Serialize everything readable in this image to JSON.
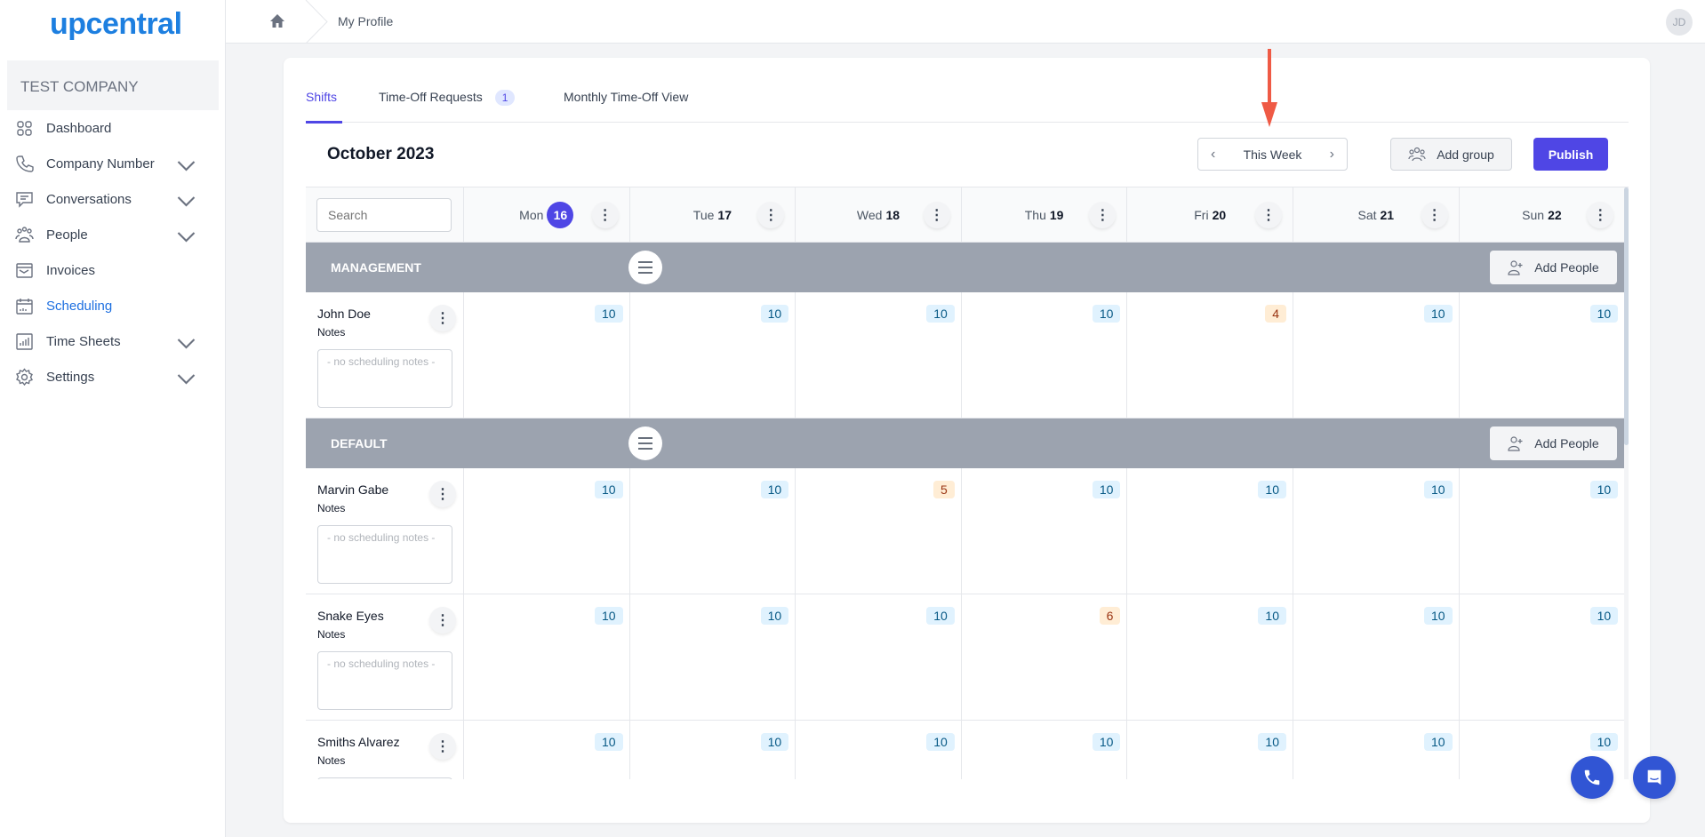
{
  "brand": "upcentral",
  "company": "TEST COMPANY",
  "sidebar": {
    "items": [
      {
        "label": "Dashboard",
        "icon": "grid-icon",
        "chevron": false
      },
      {
        "label": "Company Number",
        "icon": "phone-icon",
        "chevron": true
      },
      {
        "label": "Conversations",
        "icon": "chat-icon",
        "chevron": true
      },
      {
        "label": "People",
        "icon": "people-icon",
        "chevron": true
      },
      {
        "label": "Invoices",
        "icon": "invoice-icon",
        "chevron": false
      },
      {
        "label": "Scheduling",
        "icon": "calendar-icon",
        "chevron": false,
        "active": true
      },
      {
        "label": "Time Sheets",
        "icon": "chart-icon",
        "chevron": true
      },
      {
        "label": "Settings",
        "icon": "gear-icon",
        "chevron": true
      }
    ]
  },
  "topbar": {
    "breadcrumb": "My Profile",
    "avatar": "JD"
  },
  "tabs": [
    {
      "label": "Shifts"
    },
    {
      "label": "Time-Off Requests",
      "badge": "1"
    },
    {
      "label": "Monthly Time-Off View"
    }
  ],
  "toolbar": {
    "month": "October 2023",
    "week": "This Week",
    "add_group": "Add group",
    "publish": "Publish"
  },
  "search": {
    "placeholder": "Search"
  },
  "days": [
    {
      "name": "Mon",
      "num": "16",
      "today": true
    },
    {
      "name": "Tue",
      "num": "17"
    },
    {
      "name": "Wed",
      "num": "18"
    },
    {
      "name": "Thu",
      "num": "19"
    },
    {
      "name": "Fri",
      "num": "20"
    },
    {
      "name": "Sat",
      "num": "21"
    },
    {
      "name": "Sun",
      "num": "22"
    }
  ],
  "labels": {
    "add_people": "Add People",
    "notes": "Notes",
    "notes_placeholder": "- no scheduling notes -"
  },
  "groups": [
    {
      "name": "MANAGEMENT",
      "people": [
        {
          "name": "John Doe",
          "hours": [
            10,
            10,
            10,
            10,
            4,
            10,
            10
          ]
        }
      ]
    },
    {
      "name": "DEFAULT",
      "people": [
        {
          "name": "Marvin Gabe",
          "hours": [
            10,
            10,
            5,
            10,
            10,
            10,
            10
          ]
        },
        {
          "name": "Snake Eyes",
          "hours": [
            10,
            10,
            10,
            6,
            10,
            10,
            10
          ]
        },
        {
          "name": "Smiths Alvarez",
          "hours": [
            10,
            10,
            10,
            10,
            10,
            10,
            10
          ]
        }
      ]
    }
  ],
  "colors": {
    "accent": "#4f46e5",
    "full_bg": "#e0f2fe",
    "full_fg": "#075985",
    "partial_bg": "#ffedd5",
    "partial_fg": "#9a3412",
    "annotation_arrow": "#ef5a45"
  }
}
